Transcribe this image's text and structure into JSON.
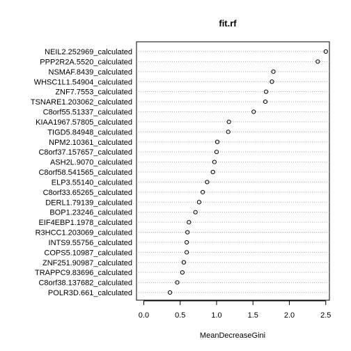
{
  "chart_data": {
    "type": "scatter",
    "subtype": "dotchart",
    "title": "fit.rf",
    "xlabel": "MeanDecreaseGini",
    "ylabel": "",
    "xlim": [
      -0.1,
      2.55
    ],
    "xticks": [
      0.0,
      0.5,
      1.0,
      1.5,
      2.0,
      2.5
    ],
    "xtick_labels": [
      "0.0",
      "0.5",
      "1.0",
      "1.5",
      "2.0",
      "2.5"
    ],
    "grid": "dotted horizontal guide lines per row",
    "marker": "open circle",
    "points": [
      {
        "label": "NEIL2.252969_calculated",
        "value": 2.5
      },
      {
        "label": "PPP2R2A.5520_calculated",
        "value": 2.39
      },
      {
        "label": "NSMAF.8439_calculated",
        "value": 1.78
      },
      {
        "label": "WHSC1L1.54904_calculated",
        "value": 1.76
      },
      {
        "label": "ZNF7.7553_calculated",
        "value": 1.68
      },
      {
        "label": "TSNARE1.203062_calculated",
        "value": 1.67
      },
      {
        "label": "C8orf55.51337_calculated",
        "value": 1.51
      },
      {
        "label": "KIAA1967.57805_calculated",
        "value": 1.17
      },
      {
        "label": "TIGD5.84948_calculated",
        "value": 1.16
      },
      {
        "label": "NPM2.10361_calculated",
        "value": 1.01
      },
      {
        "label": "C8orf37.157657_calculated",
        "value": 1.0
      },
      {
        "label": "ASH2L.9070_calculated",
        "value": 0.97
      },
      {
        "label": "C8orf58.541565_calculated",
        "value": 0.95
      },
      {
        "label": "ELP3.55140_calculated",
        "value": 0.87
      },
      {
        "label": "C8orf33.65265_calculated",
        "value": 0.81
      },
      {
        "label": "DERL1.79139_calculated",
        "value": 0.76
      },
      {
        "label": "BOP1.23246_calculated",
        "value": 0.71
      },
      {
        "label": "EIF4EBP1.1978_calculated",
        "value": 0.62
      },
      {
        "label": "R3HCC1.203069_calculated",
        "value": 0.6
      },
      {
        "label": "INTS9.55756_calculated",
        "value": 0.59
      },
      {
        "label": "COPS5.10987_calculated",
        "value": 0.59
      },
      {
        "label": "ZNF251.90987_calculated",
        "value": 0.55
      },
      {
        "label": "TRAPPC9.83696_calculated",
        "value": 0.53
      },
      {
        "label": "C8orf38.137682_calculated",
        "value": 0.46
      },
      {
        "label": "POLR3D.661_calculated",
        "value": 0.36
      }
    ]
  }
}
